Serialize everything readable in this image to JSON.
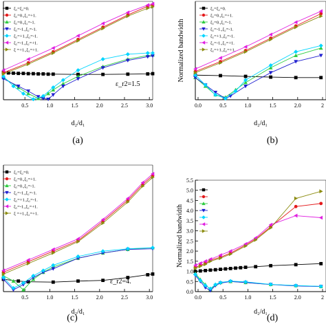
{
  "chart_data": [
    {
      "panel_label": "(a)",
      "type": "line",
      "xlabel": "d₂/d₁",
      "ylabel": "",
      "annotation": "ε_r2=1.5",
      "xlim": [
        0,
        3.0
      ],
      "ylim": [
        0,
        4.0
      ],
      "xticks": [
        "0.5",
        "1.0",
        "1.5",
        "2.0",
        "2.5",
        "3.0"
      ],
      "yticks": [],
      "legend_position": "top-left",
      "legend": [
        "ξ₁=ξ₂=0.",
        "ξ₁=0.,ξ₂=+1.",
        "ξ₁=0.,ξ₂=-1.",
        "ξ₁=-1.,ξ₂=-1.",
        "ξ₁=+1.,ξ₂=-1.",
        "ξ₁=-1.,ξ₂=+1.",
        "ξ =+1.,ξ₂=+1."
      ],
      "series": [
        {
          "name": "ξ₁=ξ₂=0.",
          "color": "#000000",
          "marker": "square",
          "x": [
            0,
            0.1,
            0.2,
            0.3,
            0.4,
            0.5,
            0.6,
            0.7,
            0.8,
            0.9,
            1.0,
            1.5,
            2.0,
            2.5,
            2.9,
            3.0
          ],
          "y": [
            1.1,
            1.09,
            1.08,
            1.07,
            1.07,
            1.06,
            1.06,
            1.05,
            1.05,
            1.04,
            1.04,
            1.03,
            1.03,
            1.04,
            1.05,
            1.06
          ]
        },
        {
          "name": "ξ₁=0.,ξ₂=+1.",
          "color": "#e41a1c",
          "marker": "circle",
          "x": [
            0,
            0.5,
            1.0,
            1.5,
            2.0,
            2.5,
            2.9,
            3.0
          ],
          "y": [
            1.1,
            1.5,
            1.95,
            2.45,
            2.95,
            3.45,
            3.8,
            3.85
          ]
        },
        {
          "name": "ξ₁=0.,ξ₂=-1.",
          "color": "#2ecc40",
          "marker": "triangle-up",
          "x": [
            0,
            0.3,
            0.5,
            0.7,
            0.8,
            0.9,
            1.0,
            1.2,
            1.5,
            2.0,
            2.5,
            2.9,
            3.0
          ],
          "y": [
            0.9,
            0.5,
            0.25,
            0.05,
            0.1,
            0.25,
            0.4,
            0.65,
            0.95,
            1.35,
            1.65,
            1.8,
            1.82
          ]
        },
        {
          "name": "ξ₁=-1.,ξ₂=-1.",
          "color": "#1f1fd0",
          "marker": "triangle-down",
          "x": [
            0,
            0.3,
            0.5,
            0.7,
            0.8,
            0.9,
            1.0,
            1.2,
            1.5,
            2.0,
            2.5,
            2.9,
            3.0
          ],
          "y": [
            0.85,
            0.55,
            0.35,
            0.12,
            0.05,
            0.02,
            0.2,
            0.55,
            0.85,
            1.3,
            1.6,
            1.75,
            1.78
          ]
        },
        {
          "name": "ξ₁=+1.,ξ₂=-1.",
          "color": "#00d5ff",
          "marker": "diamond",
          "x": [
            0,
            0.2,
            0.4,
            0.6,
            0.8,
            1.0,
            1.2,
            1.5,
            2.0,
            2.5,
            2.9,
            3.0
          ],
          "y": [
            0.95,
            0.55,
            0.25,
            0.02,
            0.15,
            0.5,
            0.8,
            1.2,
            1.65,
            1.85,
            1.9,
            1.9
          ]
        },
        {
          "name": "ξ₁=-1.,ξ₂=+1.",
          "color": "#e020e0",
          "marker": "triangle-left",
          "x": [
            0,
            0.5,
            1.0,
            1.5,
            2.0,
            2.5,
            2.9,
            3.0
          ],
          "y": [
            1.2,
            1.65,
            2.1,
            2.6,
            3.1,
            3.55,
            3.85,
            3.9
          ]
        },
        {
          "name": "ξ =+1.,ξ₂=+1.",
          "color": "#8c8c10",
          "marker": "triangle-right",
          "x": [
            0,
            0.5,
            1.0,
            1.5,
            2.0,
            2.5,
            2.9,
            3.0
          ],
          "y": [
            1.05,
            1.45,
            1.9,
            2.4,
            2.9,
            3.4,
            3.72,
            3.78
          ]
        }
      ]
    },
    {
      "panel_label": "(b)",
      "type": "line",
      "xlabel": "d₂/d₁",
      "ylabel": "Normalized bandwidth",
      "xlim": [
        0,
        2.6
      ],
      "ylim": [
        0,
        4.0
      ],
      "xticks": [
        "0.0",
        "0.5",
        "1.0",
        "1.5",
        "2.0",
        "2"
      ],
      "yticks": [],
      "legend_position": "top-left",
      "legend": [
        "ξ₁=ξ₂=0.",
        "ξ₁=0.,ξ₂=+1.",
        "ξ₁=0.,ξ₂=-1.",
        "ξ₁=-1.,ξ₂=-1.",
        "ξ₁=+1.,ξ₂=-1.",
        "ξ₁=-1.,ξ₂=+1.",
        "ξ₁=+1.,ξ₂=+1."
      ],
      "series": [
        {
          "name": "ξ₁=ξ₂=0.",
          "color": "#000000",
          "marker": "square",
          "x": [
            0,
            0.5,
            1.0,
            1.5,
            2.0,
            2.5
          ],
          "y": [
            1.0,
            0.98,
            0.95,
            0.92,
            0.9,
            0.9
          ]
        },
        {
          "name": "ξ₁=0.,ξ₂=+1.",
          "color": "#e41a1c",
          "marker": "circle",
          "x": [
            0,
            0.5,
            1.0,
            1.5,
            2.0,
            2.5
          ],
          "y": [
            1.15,
            1.55,
            2.0,
            2.5,
            3.0,
            3.5
          ]
        },
        {
          "name": "ξ₁=0.,ξ₂=-1.",
          "color": "#2ecc40",
          "marker": "triangle-up",
          "x": [
            0,
            0.2,
            0.4,
            0.6,
            0.8,
            1.0,
            1.5,
            2.0,
            2.5
          ],
          "y": [
            0.9,
            0.55,
            0.2,
            0.1,
            0.4,
            0.7,
            1.3,
            1.8,
            2.1
          ]
        },
        {
          "name": "ξ₁=-1.,ξ₂=-1.",
          "color": "#1f1fd0",
          "marker": "triangle-down",
          "x": [
            0,
            0.2,
            0.4,
            0.6,
            0.7,
            1.0,
            1.5,
            2.0,
            2.5
          ],
          "y": [
            0.9,
            0.6,
            0.3,
            0.05,
            0.15,
            0.55,
            1.1,
            1.55,
            1.8
          ]
        },
        {
          "name": "ξ₁=+1.,ξ₂=-1.",
          "color": "#00d5ff",
          "marker": "diamond",
          "x": [
            0,
            0.2,
            0.4,
            0.6,
            0.8,
            1.0,
            1.5,
            2.0,
            2.5
          ],
          "y": [
            1.0,
            0.6,
            0.2,
            0.05,
            0.35,
            0.8,
            1.4,
            1.95,
            2.2
          ]
        },
        {
          "name": "ξ₁=-1.,ξ₂=+1.",
          "color": "#e020e0",
          "marker": "triangle-left",
          "x": [
            0,
            0.5,
            1.0,
            1.5,
            2.0,
            2.5
          ],
          "y": [
            1.25,
            1.7,
            2.15,
            2.65,
            3.15,
            3.6
          ]
        },
        {
          "name": "ξ₁=+1.,ξ₂=+1.",
          "color": "#8c8c10",
          "marker": "triangle-right",
          "x": [
            0,
            0.5,
            1.0,
            1.5,
            2.0,
            2.5
          ],
          "y": [
            1.1,
            1.5,
            1.95,
            2.45,
            2.95,
            3.4
          ]
        }
      ]
    },
    {
      "panel_label": "(c)",
      "type": "line",
      "xlabel": "d₂/d₁",
      "ylabel": "",
      "annotation": "ε_r2=4.",
      "xlim": [
        0,
        3.0
      ],
      "ylim": [
        0,
        3.6
      ],
      "xticks": [
        "0.5",
        "1.0",
        "1.5",
        "2.0",
        "2.5",
        "3.0"
      ],
      "yticks": [],
      "legend_position": "top-left",
      "legend": [
        "ξ₁=ξ₂=0.",
        "ξ₁=0.,ξ₂=+1.",
        "ξ₁=0.,ξ₂=-1.",
        "ξ₁=-1.,ξ₂=-1.",
        "ξ₁=+1.,ξ₂=-1.",
        "ξ₁=-1.,ξ₂=+1.",
        "ξ =+1.,ξ₂=+1."
      ],
      "series": [
        {
          "name": "ξ₁=ξ₂=0.",
          "color": "#000000",
          "marker": "square",
          "x": [
            0,
            0.3,
            0.5,
            1.0,
            1.5,
            2.0,
            2.5,
            2.9,
            3.0
          ],
          "y": [
            0.35,
            0.3,
            0.28,
            0.27,
            0.3,
            0.32,
            0.4,
            0.48,
            0.5
          ]
        },
        {
          "name": "ξ₁=0.,ξ₂=+1.",
          "color": "#e41a1c",
          "marker": "circle",
          "x": [
            0,
            0.5,
            1.0,
            1.5,
            2.0,
            2.5,
            2.8,
            3.0
          ],
          "y": [
            0.55,
            0.85,
            1.15,
            1.45,
            2.0,
            2.6,
            3.05,
            3.3
          ]
        },
        {
          "name": "ξ₁=0.,ξ₂=-1.",
          "color": "#2ecc40",
          "marker": "triangle-up",
          "x": [
            0,
            0.2,
            0.4,
            0.6,
            0.8,
            1.0,
            1.5,
            2.0,
            2.5,
            3.0
          ],
          "y": [
            0.45,
            0.3,
            0.05,
            0.35,
            0.55,
            0.7,
            0.95,
            1.1,
            1.2,
            1.25
          ]
        },
        {
          "name": "ξ₁=-1.,ξ₂=-1.",
          "color": "#1f1fd0",
          "marker": "triangle-down",
          "x": [
            0,
            0.2,
            0.4,
            0.6,
            0.8,
            1.0,
            1.5,
            2.0,
            2.5,
            3.0
          ],
          "y": [
            0.35,
            0.05,
            0.2,
            0.4,
            0.55,
            0.65,
            0.95,
            1.1,
            1.2,
            1.22
          ]
        },
        {
          "name": "ξ₁=+1.,ξ₂=-1.",
          "color": "#00d5ff",
          "marker": "diamond",
          "x": [
            0,
            0.2,
            0.4,
            0.6,
            0.8,
            1.0,
            1.5,
            2.0,
            2.5,
            3.0
          ],
          "y": [
            0.4,
            0.1,
            0.25,
            0.45,
            0.6,
            0.75,
            1.0,
            1.15,
            1.22,
            1.25
          ]
        },
        {
          "name": "ξ₁=-1.,ξ₂=+1.",
          "color": "#e020e0",
          "marker": "triangle-left",
          "x": [
            0,
            0.5,
            1.0,
            1.5,
            2.0,
            2.5,
            2.8,
            3.0
          ],
          "y": [
            0.6,
            0.9,
            1.2,
            1.5,
            2.05,
            2.65,
            3.1,
            3.35
          ]
        },
        {
          "name": "ξ =+1.,ξ₂=+1.",
          "color": "#8c8c10",
          "marker": "triangle-right",
          "x": [
            0,
            0.5,
            1.0,
            1.5,
            2.0,
            2.5,
            2.8,
            3.0
          ],
          "y": [
            0.5,
            0.8,
            1.1,
            1.42,
            1.95,
            2.55,
            3.0,
            3.25
          ]
        }
      ]
    },
    {
      "panel_label": "(d)",
      "type": "line",
      "xlabel": "d₂/d₁",
      "ylabel": "Normalized bandwidth",
      "xlim": [
        0,
        2.6
      ],
      "ylim": [
        0,
        5.5
      ],
      "xticks": [
        "0.0",
        "0.5",
        "1.0",
        "1.5",
        "2.0",
        "2"
      ],
      "yticks": [
        "0.0",
        "0.5",
        "1.0",
        "1.5",
        "2.0",
        "2.5",
        "3.0",
        "3.5",
        "4.0",
        "4.5",
        "5.0",
        "5.5"
      ],
      "legend_position": "top-left",
      "series": [
        {
          "color": "#000000",
          "marker": "square",
          "x": [
            0,
            0.1,
            0.2,
            0.3,
            0.4,
            0.5,
            0.6,
            0.7,
            0.8,
            0.9,
            1.0,
            1.2,
            1.5,
            2.0,
            2.5
          ],
          "y": [
            1.0,
            1.02,
            1.04,
            1.06,
            1.08,
            1.1,
            1.12,
            1.14,
            1.16,
            1.18,
            1.2,
            1.23,
            1.28,
            1.33,
            1.38
          ]
        },
        {
          "color": "#e41a1c",
          "marker": "circle",
          "x": [
            0,
            0.1,
            0.2,
            0.3,
            0.5,
            0.7,
            1.0,
            1.2,
            1.5,
            2.0,
            2.5
          ],
          "y": [
            1.2,
            1.3,
            1.4,
            1.55,
            1.7,
            1.9,
            2.3,
            2.6,
            3.2,
            4.2,
            4.35
          ]
        },
        {
          "color": "#2ecc40",
          "marker": "triangle-up",
          "x": [
            0,
            0.1,
            0.2,
            0.3,
            0.4,
            0.5,
            0.7,
            1.0,
            1.5,
            2.0,
            2.5
          ],
          "y": [
            0.9,
            0.6,
            0.35,
            0.1,
            0.35,
            0.45,
            0.5,
            0.45,
            0.35,
            0.3,
            0.25
          ]
        },
        {
          "color": "#1f1fd0",
          "marker": "triangle-down",
          "x": [
            0,
            0.1,
            0.2,
            0.3,
            0.4,
            0.5,
            0.7,
            1.0,
            1.5,
            2.0,
            2.5
          ],
          "y": [
            0.8,
            0.5,
            0.2,
            0.05,
            0.3,
            0.42,
            0.5,
            0.45,
            0.35,
            0.28,
            0.25
          ]
        },
        {
          "color": "#00d5ff",
          "marker": "diamond",
          "x": [
            0,
            0.1,
            0.2,
            0.3,
            0.4,
            0.5,
            0.7,
            1.0,
            1.5,
            2.0,
            2.5
          ],
          "y": [
            0.85,
            0.55,
            0.3,
            0.15,
            0.35,
            0.45,
            0.52,
            0.48,
            0.36,
            0.3,
            0.26
          ]
        },
        {
          "color": "#e020e0",
          "marker": "triangle-left",
          "x": [
            0,
            0.1,
            0.2,
            0.3,
            0.5,
            0.7,
            1.0,
            1.2,
            1.5,
            2.0,
            2.5
          ],
          "y": [
            1.3,
            1.4,
            1.5,
            1.6,
            1.8,
            2.0,
            2.35,
            2.65,
            3.3,
            3.75,
            3.65
          ]
        },
        {
          "color": "#8c8c10",
          "marker": "triangle-right",
          "x": [
            0,
            0.1,
            0.2,
            0.3,
            0.5,
            0.7,
            1.0,
            1.2,
            1.5,
            2.0,
            2.5
          ],
          "y": [
            1.15,
            1.25,
            1.35,
            1.5,
            1.65,
            1.85,
            2.25,
            2.55,
            3.15,
            4.6,
            4.95
          ]
        }
      ]
    }
  ]
}
